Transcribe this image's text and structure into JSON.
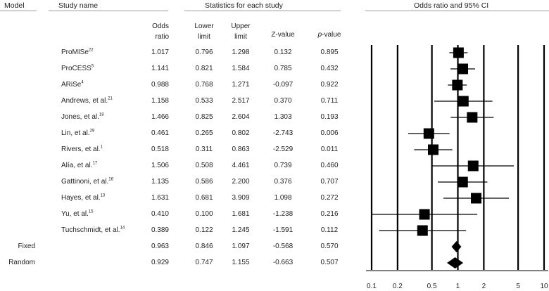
{
  "headers": {
    "model": "Model",
    "study_name": "Study name",
    "stats": "Statistics for each study",
    "or_ci": "Odds ratio and 95% CI"
  },
  "columns": {
    "odds_ratio": [
      "Odds",
      "ratio"
    ],
    "lower": [
      "Lower",
      "limit"
    ],
    "upper": [
      "Upper",
      "limit"
    ],
    "z": "Z-value",
    "p_italic": "p",
    "p_rest": "-value"
  },
  "chart_data": {
    "type": "forest",
    "xscale": "log",
    "xlim": [
      0.1,
      10
    ],
    "xticks": [
      "0.1",
      "0.2",
      "0.5",
      "1",
      "2",
      "5",
      "10"
    ],
    "studies": [
      {
        "name": "ProMISe",
        "ref": "22",
        "or": 1.017,
        "lower": 0.796,
        "upper": 1.298,
        "z": "0.132",
        "p": "0.895"
      },
      {
        "name": "ProCESS",
        "ref": "5",
        "or": 1.141,
        "lower": 0.821,
        "upper": 1.584,
        "z": "0.785",
        "p": "0.432"
      },
      {
        "name": "ARiSe",
        "ref": "4",
        "or": 0.988,
        "lower": 0.768,
        "upper": 1.271,
        "z": "-0.097",
        "p": "0.922"
      },
      {
        "name": "Andrews, et al.",
        "ref": "21",
        "or": 1.158,
        "lower": 0.533,
        "upper": 2.517,
        "z": "0.370",
        "p": "0.711"
      },
      {
        "name": "Jones, et al.",
        "ref": "18",
        "or": 1.466,
        "lower": 0.825,
        "upper": 2.604,
        "z": "1.303",
        "p": "0.193"
      },
      {
        "name": "Lin, et al.",
        "ref": "29",
        "or": 0.461,
        "lower": 0.265,
        "upper": 0.802,
        "z": "-2.743",
        "p": "0.006"
      },
      {
        "name": "Rivers, et al.",
        "ref": "1",
        "or": 0.518,
        "lower": 0.311,
        "upper": 0.863,
        "z": "-2.529",
        "p": "0.011"
      },
      {
        "name": "Alía, et al.",
        "ref": "17",
        "or": 1.506,
        "lower": 0.508,
        "upper": 4.461,
        "z": "0.739",
        "p": "0.460"
      },
      {
        "name": "Gattinoni, et al.",
        "ref": "16",
        "or": 1.135,
        "lower": 0.586,
        "upper": 2.2,
        "z": "0.376",
        "p": "0.707"
      },
      {
        "name": "Hayes, et al.",
        "ref": "13",
        "or": 1.631,
        "lower": 0.681,
        "upper": 3.909,
        "z": "1.098",
        "p": "0.272"
      },
      {
        "name": "Yu, et al.",
        "ref": "15",
        "or": 0.41,
        "lower": 0.1,
        "upper": 1.681,
        "z": "-1.238",
        "p": "0.216"
      },
      {
        "name": "Tuchschmidt, et al.",
        "ref": "14",
        "or": 0.389,
        "lower": 0.122,
        "upper": 1.245,
        "z": "-1.591",
        "p": "0.112"
      }
    ],
    "pooled": [
      {
        "model": "Fixed",
        "or": 0.963,
        "lower": 0.846,
        "upper": 1.097,
        "z": "-0.568",
        "p": "0.570"
      },
      {
        "model": "Random",
        "or": 0.929,
        "lower": 0.747,
        "upper": 1.155,
        "z": "-0.663",
        "p": "0.507"
      }
    ]
  }
}
